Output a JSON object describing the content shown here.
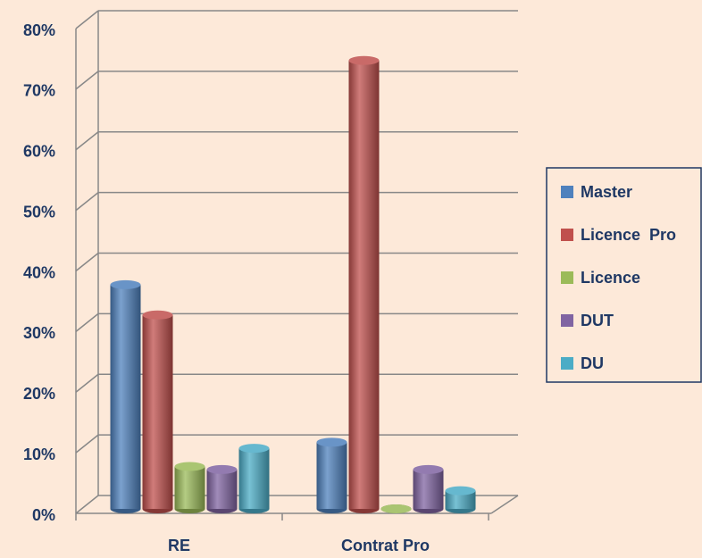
{
  "chart_data": {
    "type": "bar",
    "categories": [
      "RE",
      "Contrat Pro"
    ],
    "series": [
      {
        "name": "Master",
        "color": "#4f81bd",
        "values": [
          37,
          11
        ]
      },
      {
        "name": "Licence  Pro",
        "color": "#c0504d",
        "values": [
          32,
          74
        ]
      },
      {
        "name": "Licence",
        "color": "#9bbb59",
        "values": [
          7,
          0
        ]
      },
      {
        "name": "DUT",
        "color": "#8064a2",
        "values": [
          6.5,
          6.5
        ]
      },
      {
        "name": "DU",
        "color": "#4bacc6",
        "values": [
          10,
          3
        ]
      }
    ],
    "ylim": [
      0,
      80
    ],
    "yticks": [
      {
        "value": 0,
        "label": "0%"
      },
      {
        "value": 10,
        "label": "10%"
      },
      {
        "value": 20,
        "label": "20%"
      },
      {
        "value": 30,
        "label": "30%"
      },
      {
        "value": 40,
        "label": "40%"
      },
      {
        "value": 50,
        "label": "50%"
      },
      {
        "value": 60,
        "label": "60%"
      },
      {
        "value": 70,
        "label": "70%"
      },
      {
        "value": 80,
        "label": "80%"
      }
    ],
    "grid": true,
    "legend": "right"
  }
}
